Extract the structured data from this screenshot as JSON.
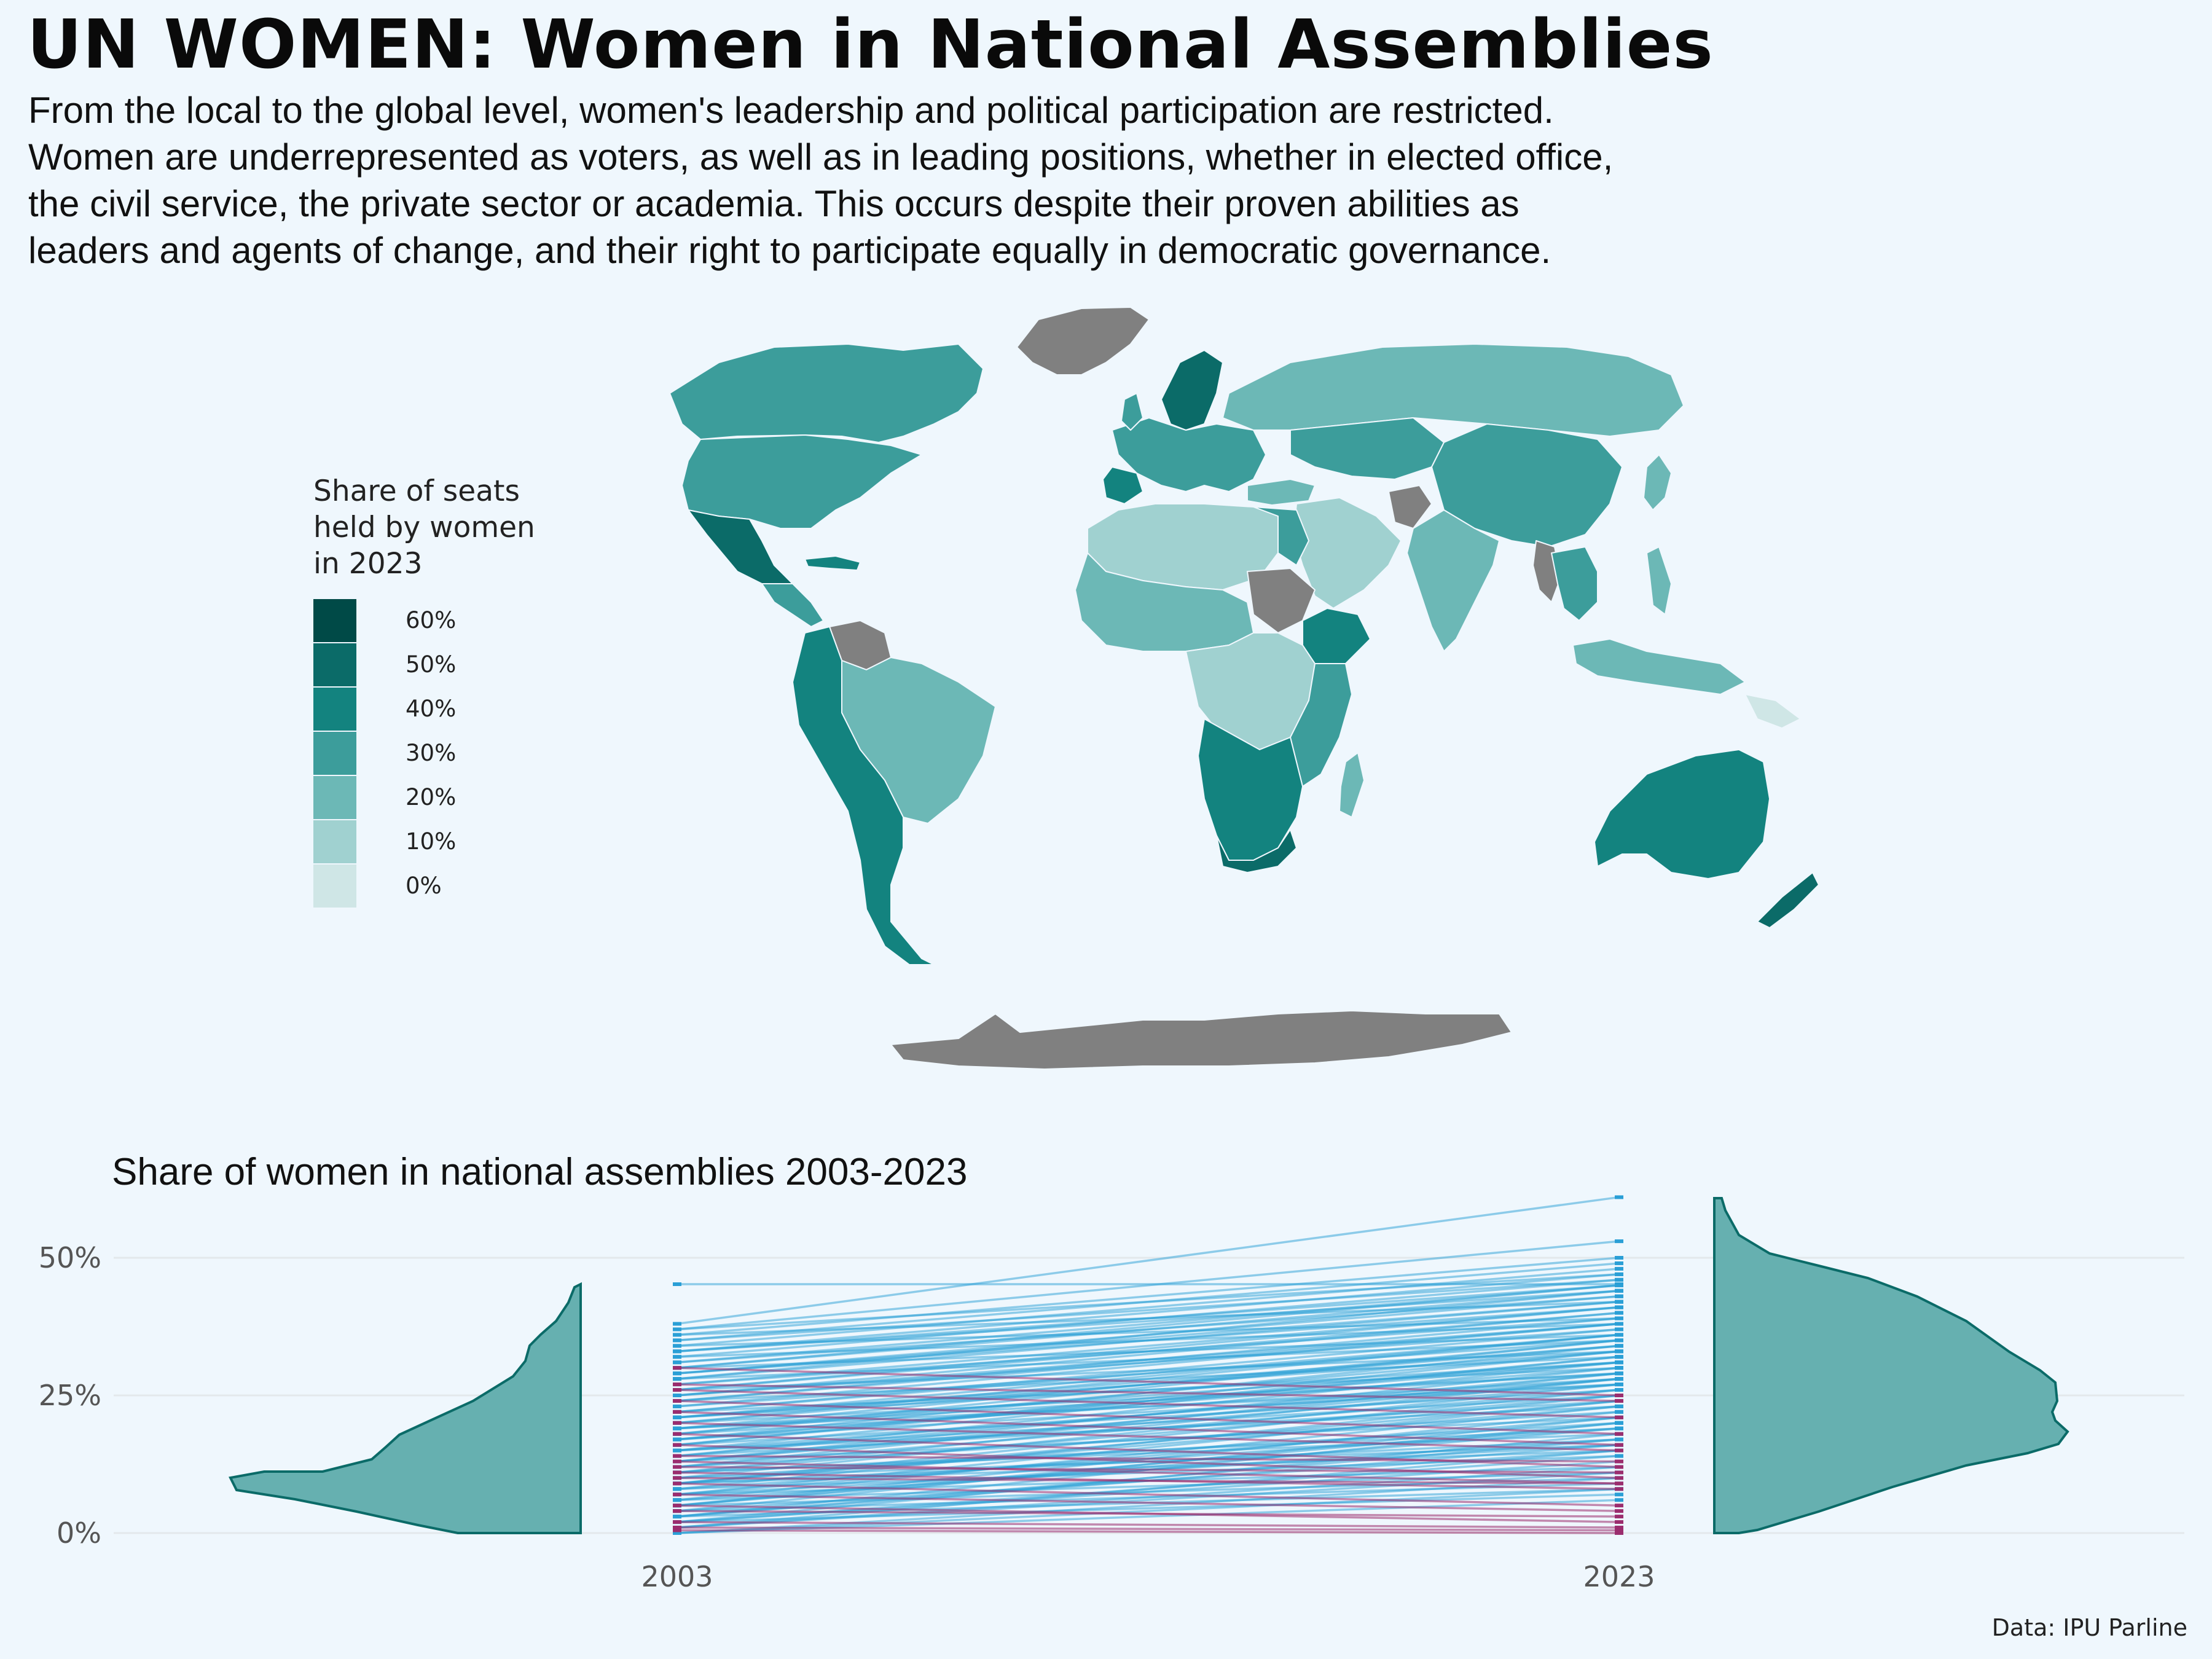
{
  "header": {
    "title": "UN WOMEN: Women in National Assemblies",
    "subtitle_lines": [
      "From the local to the global level, women's leadership and political participation are restricted.",
      "Women are underrepresented as voters, as well as in leading positions, whether in elected office,",
      "the civil service, the private sector or academia. This occurs despite their proven abilities as",
      "leaders and agents of change, and their right to participate equally in democratic governance."
    ]
  },
  "map": {
    "type": "choropleth",
    "no_data_color": "#808080",
    "legend": {
      "title_lines": [
        "Share of seats",
        "held by women",
        "in 2023"
      ],
      "items": [
        {
          "label": "60%",
          "color": "#004A47"
        },
        {
          "label": "50%",
          "color": "#0B6B68"
        },
        {
          "label": "40%",
          "color": "#13837F"
        },
        {
          "label": "30%",
          "color": "#3C9D9B"
        },
        {
          "label": "20%",
          "color": "#6CB8B6"
        },
        {
          "label": "10%",
          "color": "#A0D1D0"
        },
        {
          "label": "0%",
          "color": "#CFE6E6"
        }
      ]
    }
  },
  "chart_data": {
    "type": "line",
    "title": "Share of women in national assemblies 2003-2023",
    "x": [
      "2003",
      "2023"
    ],
    "y_ticks": [
      "0%",
      "25%",
      "50%"
    ],
    "ylim": [
      0,
      60
    ],
    "grid": true,
    "series_colors": {
      "increase": "#2A9FD6",
      "decrease": "#9B2D6E",
      "distribution": "#66B0B0",
      "distribution_outline": "#0B6B68"
    },
    "pairs_2003_2023": [
      [
        45.2,
        45.2
      ],
      [
        38,
        61
      ],
      [
        37,
        53
      ],
      [
        36,
        50
      ],
      [
        35,
        49
      ],
      [
        34,
        48
      ],
      [
        33,
        47
      ],
      [
        32,
        46
      ],
      [
        31,
        45
      ],
      [
        30,
        44
      ],
      [
        29,
        43
      ],
      [
        28,
        42
      ],
      [
        27,
        41
      ],
      [
        26,
        40
      ],
      [
        25,
        40
      ],
      [
        24,
        39
      ],
      [
        23,
        38
      ],
      [
        22,
        37
      ],
      [
        21,
        36
      ],
      [
        20,
        36
      ],
      [
        19,
        35
      ],
      [
        18,
        35
      ],
      [
        17,
        34
      ],
      [
        16,
        33
      ],
      [
        15,
        32
      ],
      [
        14,
        31
      ],
      [
        13,
        30
      ],
      [
        12,
        29
      ],
      [
        11,
        28
      ],
      [
        10,
        27
      ],
      [
        9,
        26
      ],
      [
        8,
        25
      ],
      [
        7,
        24
      ],
      [
        6,
        23
      ],
      [
        5,
        22
      ],
      [
        4,
        21
      ],
      [
        3,
        20
      ],
      [
        2,
        18
      ],
      [
        1,
        15
      ],
      [
        0,
        10
      ],
      [
        35,
        46
      ],
      [
        33,
        44
      ],
      [
        31,
        43
      ],
      [
        29,
        41
      ],
      [
        27,
        39
      ],
      [
        25,
        37
      ],
      [
        23,
        35
      ],
      [
        21,
        33
      ],
      [
        19,
        31
      ],
      [
        17,
        30
      ],
      [
        15,
        28
      ],
      [
        13,
        27
      ],
      [
        11,
        25
      ],
      [
        9,
        23
      ],
      [
        7,
        21
      ],
      [
        5,
        19
      ],
      [
        3,
        17
      ],
      [
        2,
        14
      ],
      [
        1,
        12
      ],
      [
        0,
        8
      ],
      [
        34,
        39
      ],
      [
        30,
        36
      ],
      [
        26,
        33
      ],
      [
        22,
        30
      ],
      [
        18,
        28
      ],
      [
        16,
        26
      ],
      [
        14,
        24
      ],
      [
        12,
        22
      ],
      [
        10,
        20
      ],
      [
        8,
        19
      ],
      [
        6,
        17
      ],
      [
        4,
        15
      ],
      [
        2,
        13
      ],
      [
        1,
        11
      ],
      [
        0,
        6
      ],
      [
        20,
        29
      ],
      [
        24,
        32
      ],
      [
        28,
        35
      ],
      [
        32,
        38
      ],
      [
        36,
        42
      ],
      [
        37,
        47
      ],
      [
        33,
        45
      ],
      [
        29,
        42
      ],
      [
        25,
        38
      ],
      [
        21,
        34
      ],
      [
        17,
        31
      ],
      [
        13,
        28
      ],
      [
        9,
        24
      ],
      [
        5,
        20
      ],
      [
        3,
        16
      ],
      [
        12,
        26
      ],
      [
        14,
        29
      ],
      [
        16,
        32
      ],
      [
        18,
        33
      ],
      [
        20,
        34
      ],
      [
        22,
        36
      ],
      [
        24,
        38
      ],
      [
        26,
        41
      ],
      [
        28,
        44
      ],
      [
        30,
        45
      ],
      [
        11,
        18
      ],
      [
        10,
        16
      ],
      [
        9,
        15
      ],
      [
        8,
        14
      ],
      [
        7,
        12
      ],
      [
        6,
        11
      ],
      [
        5,
        10
      ],
      [
        4,
        9
      ],
      [
        3,
        8
      ],
      [
        2,
        7
      ],
      [
        19,
        27
      ],
      [
        15,
        23
      ],
      [
        13,
        21
      ],
      [
        11,
        19
      ],
      [
        9,
        17
      ],
      [
        7,
        16
      ],
      [
        15,
        25
      ],
      [
        17,
        27
      ],
      [
        19,
        29
      ],
      [
        21,
        31
      ],
      [
        30,
        25
      ],
      [
        26,
        21
      ],
      [
        24,
        18
      ],
      [
        22,
        16
      ],
      [
        20,
        15
      ],
      [
        18,
        12
      ],
      [
        16,
        10
      ],
      [
        13,
        9
      ],
      [
        11,
        8
      ],
      [
        9,
        5
      ],
      [
        7,
        4
      ],
      [
        5,
        2
      ],
      [
        14,
        13
      ],
      [
        12,
        11
      ],
      [
        10,
        9
      ],
      [
        4,
        3
      ],
      [
        2,
        1
      ],
      [
        1,
        0.5
      ],
      [
        27,
        24
      ],
      [
        0.5,
        0
      ]
    ]
  },
  "caption": "Data: IPU Parline"
}
